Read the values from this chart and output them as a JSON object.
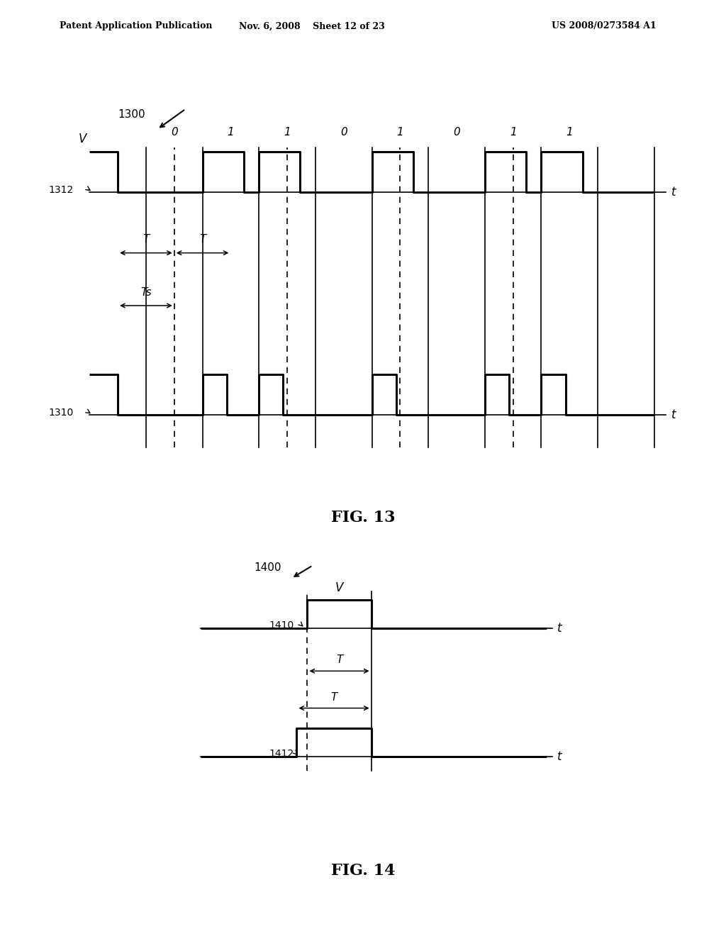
{
  "bg_color": "#ffffff",
  "header_left": "Patent Application Publication",
  "header_mid": "Nov. 6, 2008    Sheet 12 of 23",
  "header_right": "US 2008/0273584 A1",
  "fig13_label": "1300",
  "fig13_caption": "FIG. 13",
  "fig14_label": "1400",
  "fig14_caption": "FIG. 14",
  "signal1312_label": "1312",
  "signal1310_label": "1310",
  "signal1410_label": "1410",
  "signal1412_label": "1412",
  "bits": [
    0,
    1,
    1,
    0,
    1,
    0,
    1,
    1
  ],
  "V_label": "V",
  "t_label": "t",
  "T_label": "T",
  "Ts_label": "Ts",
  "lw_thick": 2.2,
  "lw_thin": 1.2,
  "lw_dashed": 1.2
}
